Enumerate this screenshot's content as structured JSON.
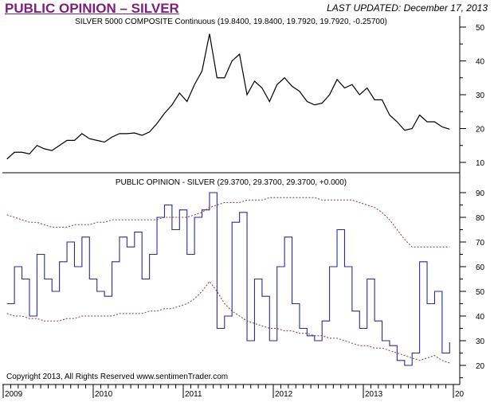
{
  "header": {
    "title": "PUBLIC OPINION – SILVER",
    "last_updated": "LAST UPDATED:  December 17, 2013"
  },
  "copyright": "Copyright 2013, All Rights Reserved  www.sentimenTrader.com",
  "colors": {
    "title": "#7b1f7b",
    "price_line": "#000000",
    "opinion_line": "#2b2b9a",
    "bands": "#8a3a3a"
  },
  "chart_data": [
    {
      "type": "line",
      "title": "SILVER 5000 COMPOSITE Continuous (19.8400, 19.8400, 19.7920, 19.7920, -0.25700)",
      "x_start": "2009-01",
      "x_step": "month",
      "ylim": [
        6,
        53
      ],
      "yticks": [
        10,
        20,
        30,
        40,
        50
      ],
      "values": [
        11,
        13,
        13,
        12.5,
        15,
        14,
        13.5,
        15,
        16.5,
        16.5,
        18.5,
        17,
        16.5,
        16,
        17.5,
        18.5,
        18.5,
        18.7,
        18,
        19,
        21.5,
        24.5,
        27,
        30.5,
        28,
        33,
        37,
        48,
        35,
        35,
        40,
        42,
        30,
        34,
        32,
        28,
        33,
        35,
        32.5,
        31,
        28,
        27,
        27.5,
        30,
        34.5,
        32,
        33,
        30,
        32,
        28.5,
        28.5,
        24,
        22,
        19.5,
        20,
        24,
        22,
        22,
        20.5,
        19.8
      ]
    },
    {
      "type": "line",
      "title": "PUBLIC OPINION - SILVER (29.3700, 29.3700, 29.3700, +0.000)",
      "x_start": "2009-01",
      "x_step": "month",
      "ylim": [
        13,
        97
      ],
      "yticks": [
        20,
        30,
        40,
        50,
        60,
        70,
        80,
        90
      ],
      "xticks": [
        "2009",
        "2010",
        "2011",
        "2012",
        "2013",
        "20"
      ],
      "series": [
        {
          "role": "opinion",
          "values": [
            45,
            60,
            55,
            40,
            65,
            55,
            50,
            62,
            70,
            60,
            72,
            55,
            50,
            48,
            62,
            72,
            68,
            74,
            55,
            65,
            80,
            85,
            75,
            83,
            65,
            80,
            83,
            90,
            35,
            40,
            78,
            82,
            30,
            55,
            48,
            30,
            60,
            72,
            45,
            35,
            32,
            30,
            38,
            60,
            75,
            60,
            42,
            35,
            55,
            38,
            30,
            28,
            22,
            20,
            25,
            62,
            45,
            50,
            25,
            29.4
          ]
        },
        {
          "role": "upper-band",
          "values": [
            81,
            80,
            79,
            78,
            78,
            77,
            76,
            76,
            76,
            77,
            77,
            77,
            78,
            78,
            79,
            79,
            79,
            79,
            79,
            79,
            79,
            80,
            80,
            80,
            80,
            81,
            82,
            84,
            85,
            86,
            86,
            86,
            87,
            87,
            87,
            88,
            88,
            88,
            88,
            88,
            88,
            88,
            87,
            87,
            87,
            87,
            87,
            86,
            85,
            84,
            82,
            79,
            75,
            71,
            68,
            68,
            68,
            68,
            68,
            68
          ]
        },
        {
          "role": "lower-band",
          "values": [
            41,
            40,
            40,
            39,
            39,
            38,
            38,
            38,
            39,
            39,
            40,
            40,
            40,
            40,
            40,
            41,
            41,
            41,
            41,
            42,
            42,
            43,
            43,
            44,
            45,
            47,
            50,
            54,
            50,
            45,
            42,
            40,
            38,
            37,
            36,
            35,
            35,
            34,
            34,
            33,
            33,
            32,
            32,
            31,
            31,
            30,
            29,
            28,
            28,
            27,
            27,
            26,
            25,
            24,
            23,
            22,
            23,
            24,
            22,
            21
          ]
        }
      ]
    }
  ]
}
